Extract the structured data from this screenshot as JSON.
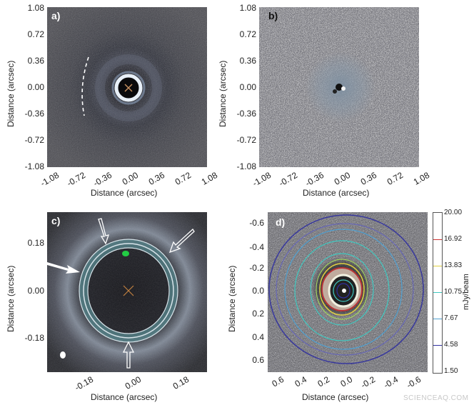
{
  "panels": {
    "a": {
      "label": "a)",
      "y_ticks": [
        "1.08",
        "0.72",
        "0.36",
        "0.00",
        "-0.36",
        "-0.72",
        "-1.08"
      ],
      "x_ticks": [
        "-1.08",
        "-0.72",
        "-0.36",
        "0.00",
        "0.36",
        "0.72",
        "1.08"
      ],
      "ylabel": "Distance (arcsec)",
      "xlabel": "Distance (arcsec)"
    },
    "b": {
      "label": "b)",
      "y_ticks": [
        "1.08",
        "0.72",
        "0.36",
        "0.00",
        "-0.36",
        "-0.72",
        "-1.08"
      ],
      "x_ticks": [
        "-1.08",
        "-0.72",
        "-0.36",
        "0.00",
        "0.36",
        "0.72",
        "1.08"
      ],
      "ylabel": "Distance (arcsec)",
      "xlabel": "Distance (arcsec)"
    },
    "c": {
      "label": "c)",
      "y_ticks": [
        "0.18",
        "0.00",
        "-0.18"
      ],
      "x_ticks": [
        "-0.18",
        "0.00",
        "0.18"
      ],
      "ylabel": "Distance (arcsec)",
      "xlabel": "Distance (arcsec)"
    },
    "d": {
      "label": "d)",
      "y_ticks": [
        "-0.6",
        "-0.4",
        "-0.2",
        "0.0",
        "0.2",
        "0.4",
        "0.6"
      ],
      "x_ticks": [
        "0.6",
        "0.4",
        "0.2",
        "0.0",
        "-0.2",
        "-0.4",
        "-0.6"
      ],
      "ylabel": "Distance (arcsec)",
      "xlabel": "Distance (arcsec)",
      "colorbar": {
        "label": "mJy/beam",
        "ticks": [
          "20.00",
          "16.92",
          "13.83",
          "10.75",
          "7.67",
          "4.58",
          "1.50"
        ],
        "tick_colors": [
          "#1a1a1a",
          "#cc3333",
          "#e0d040",
          "#40c8c0",
          "#50a0d0",
          "#3030a0",
          "#1a1a1a"
        ]
      }
    }
  },
  "watermark": "SCIENCEAQ.COM"
}
